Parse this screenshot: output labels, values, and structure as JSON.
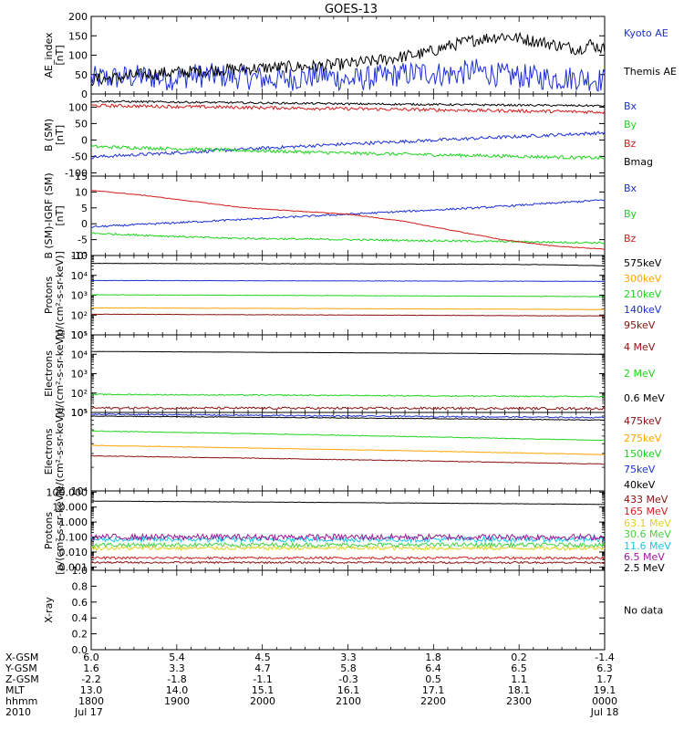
{
  "title": "GOES-13",
  "colors": {
    "black": "#000000",
    "blue": "#1c2fd6",
    "red": "#d21c1c",
    "green": "#1ed31e",
    "orange": "#ffa500",
    "darkred": "#8b1010",
    "cyan": "#18c8e8",
    "purple": "#5a1aa0",
    "yellow": "#e0d21a",
    "lime": "#42d342",
    "magenta": "#9a1a9a"
  },
  "time_axis": {
    "rows": [
      {
        "label": "X-GSM",
        "values": [
          "6.0",
          "5.4",
          "4.5",
          "3.3",
          "1.8",
          "0.2",
          "-1.4"
        ]
      },
      {
        "label": "Y-GSM",
        "values": [
          "1.6",
          "3.3",
          "4.7",
          "5.8",
          "6.4",
          "6.5",
          "6.3"
        ]
      },
      {
        "label": "Z-GSM",
        "values": [
          "-2.2",
          "-1.8",
          "-1.1",
          "-0.3",
          "0.5",
          "1.1",
          "1.7"
        ]
      },
      {
        "label": "MLT",
        "values": [
          "13.0",
          "14.0",
          "15.1",
          "16.1",
          "17.1",
          "18.1",
          "19.1"
        ]
      },
      {
        "label": "hhmm",
        "values": [
          "1800",
          "1900",
          "2000",
          "2100",
          "2200",
          "2300",
          "0000"
        ]
      },
      {
        "label": "2010",
        "values": [
          "Jul 17",
          "",
          "",
          "",
          "",
          "",
          "Jul 18"
        ]
      }
    ]
  },
  "chart_data": [
    {
      "type": "line",
      "ylabel": [
        "AE_index",
        "[nT]"
      ],
      "scale": "linear",
      "ylim": [
        0,
        200
      ],
      "yticks": [
        0,
        50,
        100,
        150,
        200
      ],
      "yticklabels": [
        "0",
        "50",
        "100",
        "150",
        "200"
      ],
      "series": [
        {
          "name": "Kyoto AE",
          "color": "blue",
          "points": [
            [
              0,
              40
            ],
            [
              0.05,
              42
            ],
            [
              0.1,
              45
            ],
            [
              0.15,
              40
            ],
            [
              0.2,
              48
            ],
            [
              0.25,
              47
            ],
            [
              0.3,
              43
            ],
            [
              0.35,
              38
            ],
            [
              0.4,
              40
            ],
            [
              0.45,
              50
            ],
            [
              0.5,
              35
            ],
            [
              0.55,
              42
            ],
            [
              0.6,
              50
            ],
            [
              0.65,
              55
            ],
            [
              0.7,
              50
            ],
            [
              0.75,
              60
            ],
            [
              0.8,
              48
            ],
            [
              0.85,
              45
            ],
            [
              0.9,
              40
            ],
            [
              0.95,
              42
            ],
            [
              1,
              35
            ]
          ],
          "noise": 4
        },
        {
          "name": "Themis AE",
          "color": "black",
          "points": [
            [
              0,
              36
            ],
            [
              0.05,
              42
            ],
            [
              0.1,
              50
            ],
            [
              0.15,
              55
            ],
            [
              0.2,
              58
            ],
            [
              0.25,
              62
            ],
            [
              0.3,
              65
            ],
            [
              0.35,
              68
            ],
            [
              0.4,
              70
            ],
            [
              0.45,
              72
            ],
            [
              0.5,
              78
            ],
            [
              0.55,
              85
            ],
            [
              0.6,
              95
            ],
            [
              0.65,
              105
            ],
            [
              0.7,
              125
            ],
            [
              0.75,
              140
            ],
            [
              0.8,
              150
            ],
            [
              0.85,
              140
            ],
            [
              0.9,
              128
            ],
            [
              0.95,
              115
            ],
            [
              0.97,
              130
            ],
            [
              1,
              115
            ]
          ],
          "noise": 2
        }
      ]
    },
    {
      "type": "line",
      "ylabel": [
        "B (SM)",
        "[nT]"
      ],
      "scale": "linear",
      "ylim": [
        -110,
        140
      ],
      "yticks": [
        -100,
        -50,
        0,
        50,
        100
      ],
      "yticklabels": [
        "-100",
        "-50",
        "0",
        "50",
        "100"
      ],
      "series": [
        {
          "name": "Bx",
          "color": "blue",
          "points": [
            [
              0,
              -52
            ],
            [
              0.5,
              -12
            ],
            [
              1,
              22
            ]
          ],
          "noise": 0.5
        },
        {
          "name": "By",
          "color": "green",
          "points": [
            [
              0,
              -20
            ],
            [
              0.5,
              -40
            ],
            [
              1,
              -55
            ]
          ],
          "noise": 0.5
        },
        {
          "name": "Bz",
          "color": "red",
          "points": [
            [
              0,
              105
            ],
            [
              0.5,
              95
            ],
            [
              1,
              85
            ]
          ],
          "noise": 0.5
        },
        {
          "name": "Bmag",
          "color": "black",
          "points": [
            [
              0,
              118
            ],
            [
              0.5,
              110
            ],
            [
              1,
              104
            ]
          ],
          "noise": 0.3
        }
      ]
    },
    {
      "type": "line",
      "ylabel": [
        "B (SM)-IGRF (SM)",
        "[nT]"
      ],
      "scale": "linear",
      "ylim": [
        -10,
        15
      ],
      "yticks": [
        -10,
        -5,
        0,
        5,
        10,
        15
      ],
      "yticklabels": [
        "-10",
        "-5",
        "0",
        "5",
        "10",
        "15"
      ],
      "series": [
        {
          "name": "Bx",
          "color": "blue",
          "points": [
            [
              0,
              -1
            ],
            [
              0.5,
              3
            ],
            [
              0.75,
              5
            ],
            [
              1,
              7.5
            ]
          ],
          "noise": 0.3
        },
        {
          "name": "By",
          "color": "green",
          "points": [
            [
              0,
              -3
            ],
            [
              0.25,
              -4.5
            ],
            [
              0.5,
              -5
            ],
            [
              1,
              -6
            ]
          ],
          "noise": 0.3
        },
        {
          "name": "Bz",
          "color": "red",
          "points": [
            [
              0,
              10.5
            ],
            [
              0.1,
              9
            ],
            [
              0.2,
              7
            ],
            [
              0.3,
              5
            ],
            [
              0.4,
              4
            ],
            [
              0.5,
              3
            ],
            [
              0.6,
              1
            ],
            [
              0.7,
              -2
            ],
            [
              0.8,
              -5
            ],
            [
              0.9,
              -7
            ],
            [
              1,
              -8
            ]
          ],
          "noise": 0.1
        }
      ]
    },
    {
      "type": "line",
      "ylabel": [
        "Protons",
        "[p/(cm²-s-sr-keV)]"
      ],
      "scale": "log",
      "ylim": [
        10,
        100000
      ],
      "yticks": [
        10,
        100,
        1000,
        10000,
        100000
      ],
      "yticklabels": [
        "10¹",
        "10²",
        "10³",
        "10⁴",
        "10⁵"
      ],
      "series": [
        {
          "name": "575keV",
          "color": "black",
          "points": [
            [
              0,
              40000
            ],
            [
              0.5,
              38000
            ],
            [
              0.8,
              36000
            ],
            [
              0.9,
              34000
            ],
            [
              1,
              30000
            ]
          ],
          "noise": 0.01
        },
        {
          "name": "300keV",
          "color": "orange",
          "points": [
            [
              0,
              230
            ],
            [
              1,
              190
            ]
          ],
          "noise": 0.01
        },
        {
          "name": "210keV",
          "color": "green",
          "points": [
            [
              0,
              1050
            ],
            [
              1,
              850
            ]
          ],
          "noise": 0.01
        },
        {
          "name": "140keV",
          "color": "blue",
          "points": [
            [
              0,
              5500
            ],
            [
              1,
              5000
            ]
          ],
          "noise": 0.01
        },
        {
          "name": "95keV",
          "color": "darkred",
          "points": [
            [
              0,
              110
            ],
            [
              1,
              90
            ]
          ],
          "noise": 0.01
        }
      ]
    },
    {
      "type": "line",
      "ylabel": [
        "Electrons",
        "[e/(cm²-s-sr-keV)]"
      ],
      "scale": "log",
      "ylim": [
        10,
        100000
      ],
      "yticks": [
        10,
        100,
        1000,
        10000,
        100000
      ],
      "yticklabels": [
        "10¹",
        "10²",
        "10³",
        "10⁴",
        "10⁵"
      ],
      "series": [
        {
          "name": "4 MeV",
          "color": "darkred",
          "points": [
            [
              0,
              17
            ],
            [
              1,
              16
            ]
          ],
          "noise": 0.06
        },
        {
          "name": "2 MeV",
          "color": "green",
          "points": [
            [
              0,
              85
            ],
            [
              1,
              65
            ]
          ],
          "noise": 0.03
        },
        {
          "name": "0.6 MeV",
          "color": "black",
          "points": [
            [
              0,
              14000
            ],
            [
              0.5,
              12000
            ],
            [
              1,
              10000
            ]
          ],
          "noise": 0.005
        }
      ]
    },
    {
      "type": "line",
      "ylabel": [
        "Electrons",
        "[e/(cm²-s-sr-keV)]"
      ],
      "scale": "log",
      "ylim": [
        10000,
        100000
      ],
      "yticks": [
        10000,
        100000
      ],
      "yticklabels": [
        "10⁴",
        "10⁵"
      ],
      "series": [
        {
          "name": "475keV",
          "color": "darkred",
          "points": [
            [
              0,
              28000
            ],
            [
              1,
              22000
            ]
          ],
          "noise": 0.004
        },
        {
          "name": "275keV",
          "color": "orange",
          "points": [
            [
              0,
              38000
            ],
            [
              1,
              29000
            ]
          ],
          "noise": 0.004
        },
        {
          "name": "150keV",
          "color": "green",
          "points": [
            [
              0,
              58000
            ],
            [
              1,
              44000
            ]
          ],
          "noise": 0.004
        },
        {
          "name": "75keV",
          "color": "blue",
          "points": [
            [
              0,
              95000
            ],
            [
              0.5,
              90000
            ],
            [
              1,
              86000
            ]
          ],
          "noise": 0.008
        },
        {
          "name": "40keV",
          "color": "black",
          "points": [
            [
              0,
              90000
            ],
            [
              0.5,
              85000
            ],
            [
              1,
              80000
            ]
          ],
          "noise": 0.004
        }
      ]
    },
    {
      "type": "line",
      "ylabel": [
        "Protons",
        "[p/(cm²-s-sr-keV)]"
      ],
      "scale": "log",
      "ylim": [
        0.0006,
        120
      ],
      "yticks": [
        0.001,
        0.01,
        0.1,
        1,
        10,
        100
      ],
      "yticklabels": [
        "0.001",
        "0.010",
        "0.100",
        "1.000",
        "10.000",
        "100.000"
      ],
      "series": [
        {
          "name": "433 MeV",
          "color": "darkred",
          "points": [
            [
              0,
              0.002
            ],
            [
              1,
              0.002
            ]
          ],
          "noise": 0.06
        },
        {
          "name": "165 MeV",
          "color": "red",
          "points": [
            [
              0,
              0.004
            ],
            [
              1,
              0.004
            ]
          ],
          "noise": 0.08
        },
        {
          "name": "63.1 MeV",
          "color": "yellow",
          "points": [
            [
              0,
              0.018
            ],
            [
              1,
              0.018
            ]
          ],
          "noise": 0.12
        },
        {
          "name": "30.6 MeV",
          "color": "lime",
          "points": [
            [
              0,
              0.03
            ],
            [
              1,
              0.03
            ]
          ],
          "noise": 0.14
        },
        {
          "name": "11.6 MeV",
          "color": "cyan",
          "points": [
            [
              0,
              0.07
            ],
            [
              1,
              0.07
            ]
          ],
          "noise": 0.18
        },
        {
          "name": "6.5 MeV",
          "color": "magenta",
          "points": [
            [
              0,
              0.1
            ],
            [
              1,
              0.1
            ]
          ],
          "noise": 0.2
        },
        {
          "name": "2.5 MeV",
          "color": "black",
          "points": [
            [
              0,
              25
            ],
            [
              0.5,
              20
            ],
            [
              1,
              15
            ]
          ],
          "noise": 0.01
        }
      ]
    },
    {
      "type": "line",
      "ylabel": [
        "X-ray",
        ""
      ],
      "scale": "linear",
      "ylim": [
        0,
        1
      ],
      "yticks": [
        0,
        0.2,
        0.4,
        0.6,
        0.8,
        1.0
      ],
      "yticklabels": [
        "0.0",
        "0.2",
        "0.4",
        "0.6",
        "0.8",
        "1.0"
      ],
      "series": [],
      "note": "No data"
    }
  ]
}
